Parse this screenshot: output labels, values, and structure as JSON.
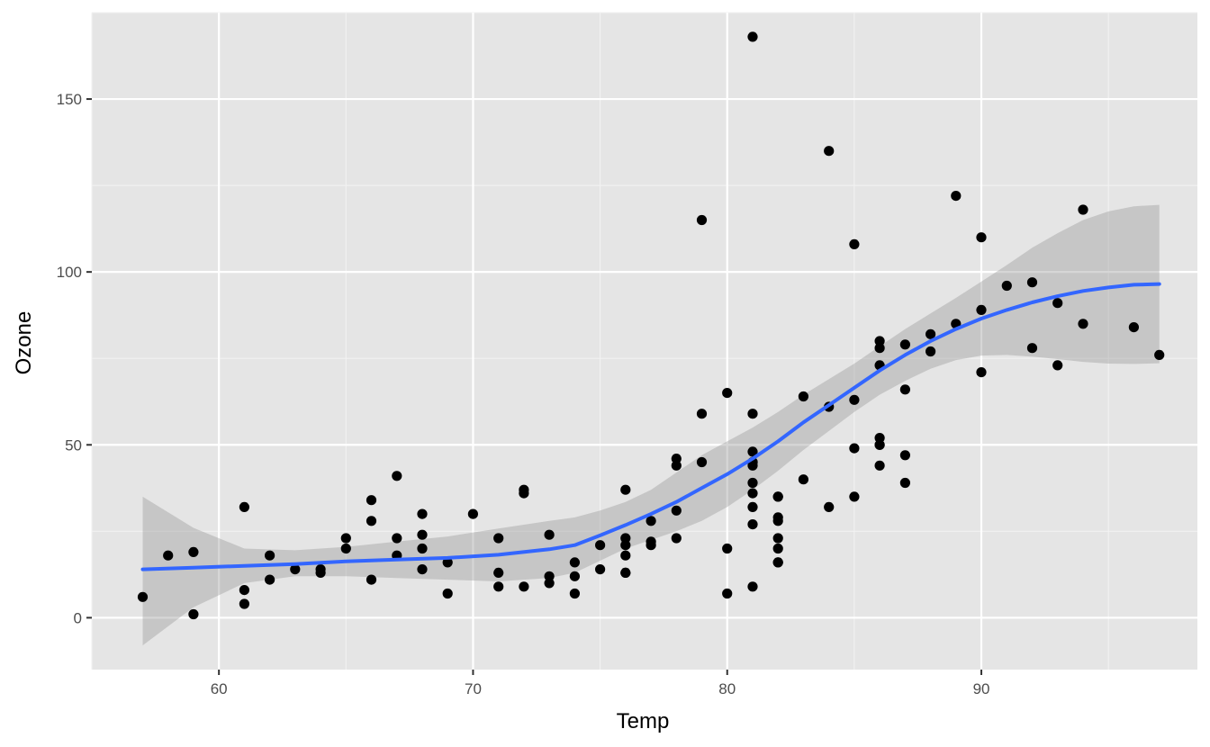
{
  "chart_data": {
    "type": "scatter",
    "title": "",
    "xlabel": "Temp",
    "ylabel": "Ozone",
    "xlim": [
      55,
      98.5
    ],
    "ylim": [
      -15,
      175
    ],
    "x_ticks": [
      60,
      70,
      80,
      90
    ],
    "y_ticks": [
      0,
      50,
      100,
      150
    ],
    "grid": true,
    "legend": "none",
    "colors": {
      "panel_background": "#e5e5e5",
      "grid_major": "#ffffff",
      "grid_minor": "#f2f2f2",
      "points": "#000000",
      "smooth_line": "#3366ff",
      "confidence_band": "#999999"
    },
    "series": [
      {
        "kind": "points",
        "x": [
          57,
          58,
          59,
          59,
          61,
          61,
          61,
          62,
          62,
          63,
          64,
          64,
          65,
          65,
          66,
          66,
          66,
          67,
          67,
          67,
          68,
          68,
          68,
          68,
          69,
          69,
          70,
          71,
          71,
          71,
          72,
          72,
          72,
          73,
          73,
          73,
          74,
          74,
          74,
          75,
          75,
          76,
          76,
          76,
          76,
          76,
          76,
          77,
          77,
          77,
          78,
          78,
          78,
          78,
          79,
          79,
          79,
          80,
          80,
          80,
          81,
          81,
          81,
          81,
          81,
          81,
          81,
          81,
          81,
          81,
          81,
          82,
          82,
          82,
          82,
          82,
          82,
          82,
          82,
          83,
          83,
          84,
          84,
          84,
          85,
          85,
          85,
          85,
          86,
          86,
          86,
          86,
          86,
          86,
          86,
          87,
          87,
          87,
          87,
          88,
          88,
          89,
          89,
          90,
          90,
          90,
          91,
          92,
          92,
          93,
          93,
          94,
          94,
          96,
          97
        ],
        "y": [
          6,
          18,
          19,
          1,
          32,
          8,
          4,
          18,
          11,
          14,
          14,
          13,
          23,
          20,
          34,
          28,
          11,
          41,
          23,
          18,
          30,
          24,
          20,
          14,
          16,
          7,
          30,
          23,
          13,
          9,
          37,
          36,
          9,
          24,
          12,
          10,
          16,
          12,
          7,
          21,
          14,
          37,
          23,
          21,
          18,
          13,
          13,
          28,
          22,
          21,
          46,
          44,
          31,
          23,
          115,
          59,
          45,
          65,
          20,
          7,
          168,
          59,
          48,
          45,
          44,
          39,
          36,
          32,
          27,
          9,
          45,
          35,
          29,
          28,
          23,
          20,
          16,
          16,
          35,
          64,
          40,
          135,
          61,
          32,
          108,
          63,
          49,
          35,
          80,
          78,
          73,
          52,
          50,
          44,
          50,
          79,
          66,
          47,
          39,
          82,
          77,
          122,
          85,
          110,
          89,
          71,
          96,
          97,
          78,
          91,
          73,
          118,
          85,
          84,
          76
        ]
      },
      {
        "kind": "loess",
        "x": [
          57,
          59,
          61,
          63,
          65,
          67,
          69,
          71,
          73,
          74,
          75,
          76,
          77,
          78,
          79,
          80,
          81,
          82,
          83,
          84,
          85,
          86,
          87,
          88,
          89,
          90,
          91,
          92,
          93,
          94,
          95,
          96,
          97
        ],
        "y": [
          14,
          14.5,
          15,
          15.5,
          16.3,
          16.8,
          17.3,
          18.2,
          19.8,
          21,
          23.8,
          26.8,
          30,
          33.5,
          37.5,
          41.5,
          46,
          51,
          56.5,
          61.5,
          66.5,
          71.5,
          76,
          80,
          83.5,
          86.5,
          89,
          91.2,
          93,
          94.5,
          95.5,
          96.3,
          96.5
        ],
        "ymin": [
          -8,
          3,
          10,
          12,
          12,
          11.5,
          11,
          10.5,
          11.5,
          13,
          16.5,
          20,
          22.5,
          25,
          28,
          32,
          37,
          42.5,
          48.5,
          54,
          59.5,
          64.5,
          68.5,
          72,
          74.5,
          75.8,
          76,
          75.5,
          74.8,
          74,
          73.5,
          73.4,
          73.6
        ],
        "ymax": [
          35,
          26,
          20,
          19.5,
          20.5,
          22,
          23.5,
          25.8,
          28,
          29,
          31,
          33.5,
          37,
          42,
          47,
          51,
          55,
          59.5,
          64.5,
          69,
          73.5,
          78.5,
          83.5,
          88,
          92.5,
          97.2,
          102,
          107,
          111.2,
          115,
          117.5,
          119,
          119.4
        ]
      }
    ]
  }
}
